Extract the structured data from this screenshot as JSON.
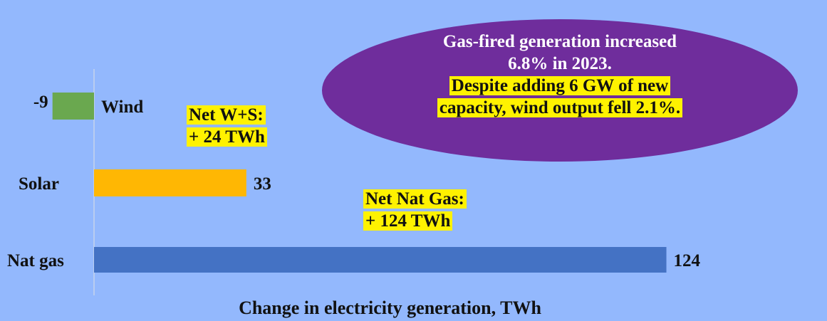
{
  "chart_data": {
    "type": "bar",
    "orientation": "horizontal",
    "categories": [
      "Wind",
      "Solar",
      "Nat gas"
    ],
    "values": [
      -9,
      33,
      124
    ],
    "value_labels": [
      "-9",
      "33",
      "124"
    ],
    "colors": [
      "#6aa84f",
      "#ffb703",
      "#4472c4"
    ],
    "xlabel": "Change in electricity generation, TWh",
    "ylabel": "",
    "xlim": [
      -11,
      126
    ],
    "grid": false
  },
  "notes": {
    "net_ws_line1": "Net W+S:",
    "net_ws_line2": "+ 24 TWh",
    "net_gas_line1": "Net Nat Gas:",
    "net_gas_line2": "+ 124 TWh"
  },
  "callout": {
    "line1": "Gas-fired generation increased",
    "line2": "6.8% in 2023.",
    "line3": "Despite adding 6 GW of new",
    "line4": "capacity, wind output fell 2.1%."
  },
  "colors": {
    "background": "#93b8fd",
    "callout_fill": "#6f2d9c",
    "highlight": "#fff200"
  }
}
